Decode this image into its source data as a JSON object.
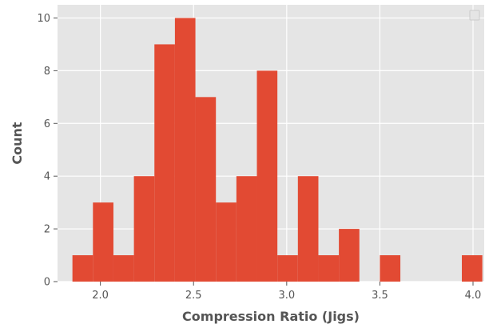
{
  "chart_data": {
    "type": "bar",
    "style": "histogram",
    "xlabel": "Compression Ratio (Jigs)",
    "ylabel": "Count",
    "xlim": [
      1.77,
      4.06
    ],
    "ylim": [
      0,
      10.5
    ],
    "xticks": [
      "2.0",
      "2.5",
      "3.0",
      "3.5",
      "4.0"
    ],
    "yticks": [
      "0",
      "2",
      "4",
      "6",
      "8",
      "10"
    ],
    "grid": true,
    "legend": "top-right, empty",
    "bar_color": "#E24A33",
    "background_color": "#E5E5E5",
    "bins": [
      {
        "x0": 1.85,
        "x1": 1.96,
        "count": 1
      },
      {
        "x0": 1.96,
        "x1": 2.07,
        "count": 3
      },
      {
        "x0": 2.07,
        "x1": 2.18,
        "count": 1
      },
      {
        "x0": 2.18,
        "x1": 2.29,
        "count": 4
      },
      {
        "x0": 2.29,
        "x1": 2.4,
        "count": 9
      },
      {
        "x0": 2.4,
        "x1": 2.51,
        "count": 10
      },
      {
        "x0": 2.51,
        "x1": 2.62,
        "count": 7
      },
      {
        "x0": 2.62,
        "x1": 2.73,
        "count": 3
      },
      {
        "x0": 2.73,
        "x1": 2.84,
        "count": 4
      },
      {
        "x0": 2.84,
        "x1": 2.95,
        "count": 8
      },
      {
        "x0": 2.95,
        "x1": 3.06,
        "count": 1
      },
      {
        "x0": 3.06,
        "x1": 3.17,
        "count": 4
      },
      {
        "x0": 3.17,
        "x1": 3.28,
        "count": 1
      },
      {
        "x0": 3.28,
        "x1": 3.39,
        "count": 2
      },
      {
        "x0": 3.39,
        "x1": 3.5,
        "count": 0
      },
      {
        "x0": 3.5,
        "x1": 3.61,
        "count": 1
      },
      {
        "x0": 3.61,
        "x1": 3.72,
        "count": 0
      },
      {
        "x0": 3.72,
        "x1": 3.83,
        "count": 0
      },
      {
        "x0": 3.83,
        "x1": 3.94,
        "count": 0
      },
      {
        "x0": 3.94,
        "x1": 4.05,
        "count": 1
      }
    ]
  }
}
